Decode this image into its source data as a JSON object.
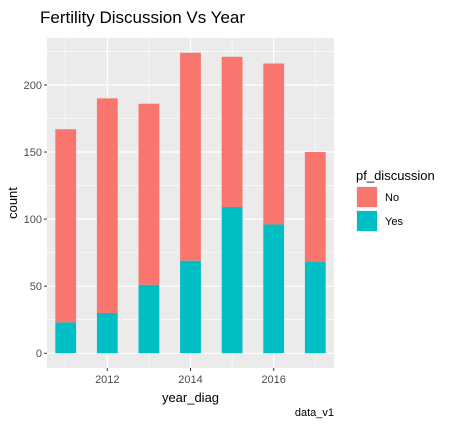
{
  "chart_data": {
    "type": "bar",
    "stacked": true,
    "title": "Fertility Discussion Vs Year",
    "xlabel": "year_diag",
    "ylabel": "count",
    "caption": "data_v1",
    "x": [
      2011,
      2012,
      2013,
      2014,
      2015,
      2016,
      2017
    ],
    "x_ticks": [
      "2012",
      "2014",
      "2016"
    ],
    "x_tick_values": [
      2012,
      2014,
      2016
    ],
    "xlim": [
      2010.55,
      2017.45
    ],
    "y_ticks": [
      "0",
      "50",
      "100",
      "150",
      "200"
    ],
    "y_tick_values": [
      0,
      50,
      100,
      150,
      200
    ],
    "ylim": [
      -11,
      235
    ],
    "grid": true,
    "legend": {
      "title": "pf_discussion",
      "position": "right",
      "entries": [
        {
          "name": "No",
          "color": "#F8766D"
        },
        {
          "name": "Yes",
          "color": "#00BFC4"
        }
      ]
    },
    "series": [
      {
        "name": "No",
        "color": "#F8766D",
        "values": [
          144,
          160,
          135,
          155,
          112,
          120,
          82
        ]
      },
      {
        "name": "Yes",
        "color": "#00BFC4",
        "values": [
          23,
          30,
          51,
          69,
          109,
          96,
          68
        ]
      }
    ],
    "panel_background": "#EBEBEB",
    "grid_color": "#FFFFFF"
  }
}
